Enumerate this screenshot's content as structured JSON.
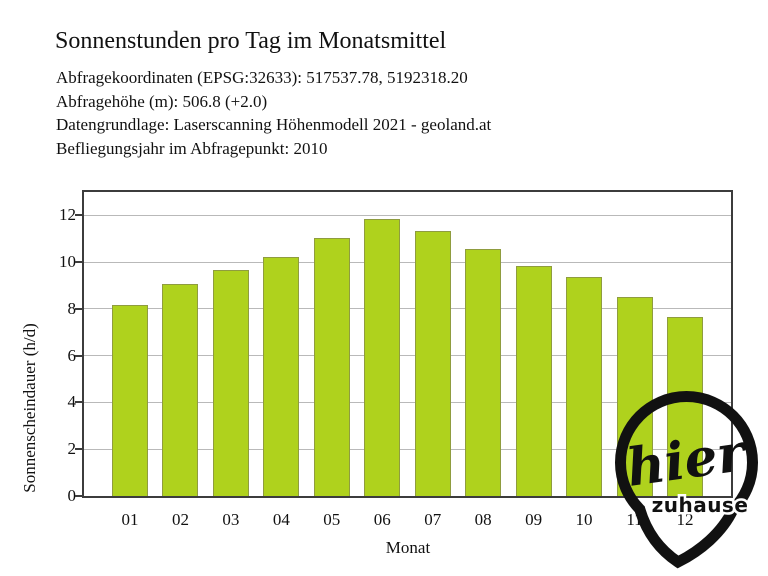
{
  "header": {
    "title": "Sonnenstunden pro Tag im Monatsmittel",
    "meta_lines": [
      "Abfragekoordinaten (EPSG:32633): 517537.78, 5192318.20",
      "Abfragehöhe (m): 506.8 (+2.0)",
      "Datengrundlage: Laserscanning Höhenmodell 2021 - geoland.at",
      "Befliegungsjahr im Abfragepunkt: 2010"
    ]
  },
  "chart_data": {
    "type": "bar",
    "title": "Sonnenstunden pro Tag im Monatsmittel",
    "categories": [
      "01",
      "02",
      "03",
      "04",
      "05",
      "06",
      "07",
      "08",
      "09",
      "10",
      "11",
      "12"
    ],
    "values": [
      8.15,
      9.05,
      9.65,
      10.2,
      11.05,
      11.85,
      11.35,
      10.55,
      9.85,
      9.35,
      8.5,
      7.65
    ],
    "xlabel": "Monat",
    "ylabel": "Sonnenscheindauer (h/d)",
    "ylim": [
      0,
      13
    ],
    "yticks": [
      0,
      2,
      4,
      6,
      8,
      10,
      12
    ],
    "grid": true,
    "legend": false,
    "colors": {
      "bar_fill": "#afd21d",
      "bar_edge": "#8f9c3f",
      "grid_line": "#b9b9b9",
      "axis_frame": "#3c3c3c",
      "text": "#111111"
    }
  },
  "logo": {
    "main_text": "hier",
    "sub_text": "zuhause",
    "color": "#111111"
  }
}
